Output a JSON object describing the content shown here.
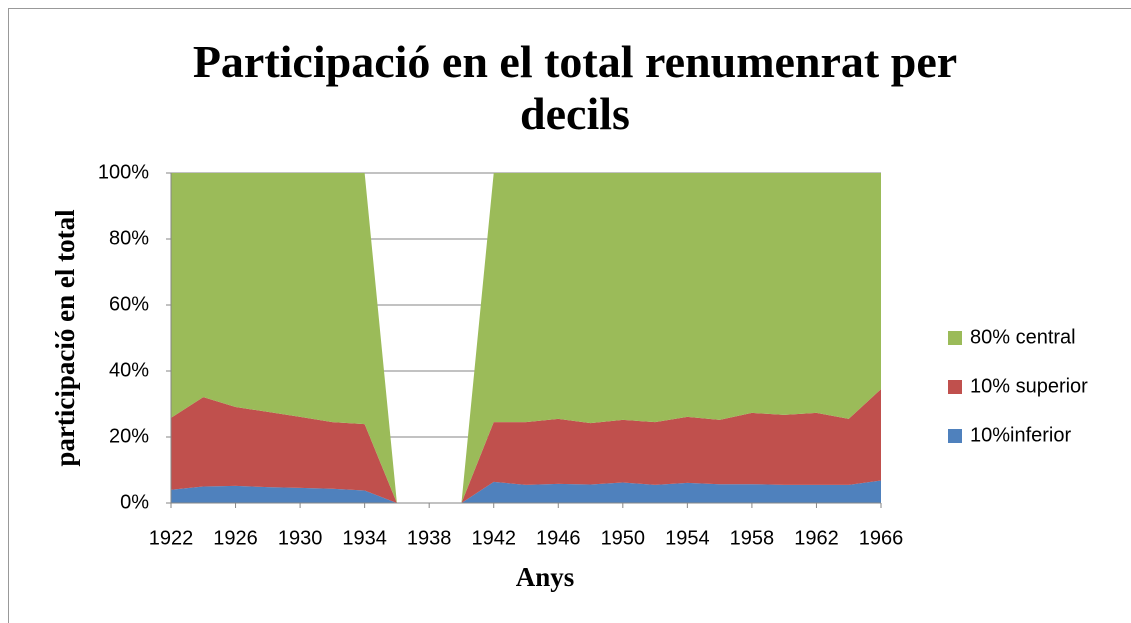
{
  "chart_data": {
    "type": "stacked_area",
    "title": "Participació en el total renumenrat per decils",
    "x_label": "Anys",
    "y_label": "participació en el total",
    "x": [
      1922,
      1924,
      1926,
      1928,
      1930,
      1932,
      1934,
      1936,
      1938,
      1940,
      1942,
      1944,
      1946,
      1948,
      1950,
      1952,
      1954,
      1956,
      1958,
      1960,
      1962,
      1964,
      1966
    ],
    "xlim": [
      1922,
      1966
    ],
    "xticks": [
      1922,
      1926,
      1930,
      1934,
      1938,
      1942,
      1946,
      1950,
      1954,
      1958,
      1962,
      1966
    ],
    "ylim": [
      0,
      100
    ],
    "yticks": [
      {
        "value": 0,
        "label": "0%"
      },
      {
        "value": 20,
        "label": "20%"
      },
      {
        "value": 40,
        "label": "40%"
      },
      {
        "value": 60,
        "label": "60%"
      },
      {
        "value": 80,
        "label": "80%"
      },
      {
        "value": 100,
        "label": "100%"
      }
    ],
    "grid": true,
    "legend": "right",
    "series": [
      {
        "name": "10%inferior",
        "color": "#4f81bd",
        "values": [
          4,
          5,
          5.2,
          4.8,
          4.6,
          4.3,
          3.8,
          0,
          0,
          0,
          6.4,
          5.5,
          5.8,
          5.6,
          6.2,
          5.5,
          6.1,
          5.7,
          5.7,
          5.5,
          5.5,
          5.5,
          6.8
        ]
      },
      {
        "name": "10% superior",
        "color": "#c0504d",
        "values": [
          21.8,
          27.1,
          23.9,
          22.8,
          21.5,
          20.2,
          20.1,
          0,
          0,
          0,
          18.1,
          19,
          19.7,
          18.6,
          19,
          19,
          20,
          19.5,
          21.6,
          21.2,
          21.8,
          20,
          27.7
        ]
      },
      {
        "name": "80% central",
        "color": "#9bbb59",
        "values": [
          74.2,
          67.9,
          70.9,
          72.4,
          73.9,
          75.5,
          76.1,
          0,
          0,
          0,
          75.5,
          75.5,
          74.5,
          75.8,
          74.8,
          75.5,
          73.9,
          74.8,
          72.7,
          73.3,
          72.7,
          74.5,
          65.5
        ]
      }
    ]
  }
}
